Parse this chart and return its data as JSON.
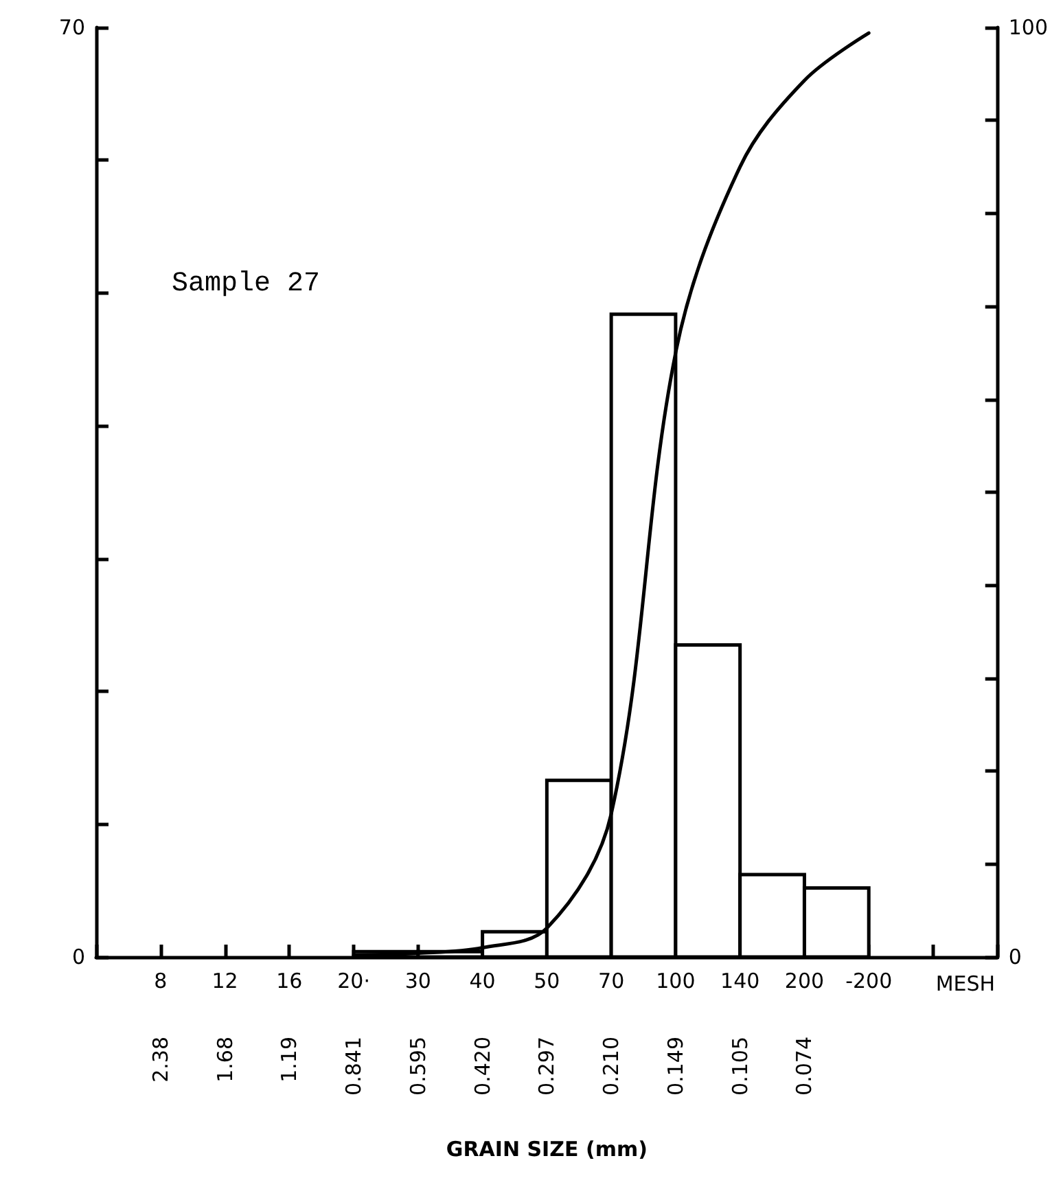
{
  "chart_data": {
    "type": "bar",
    "title": "Sample 27",
    "xlabel": "MESH",
    "categories": [
      null,
      "8",
      "12",
      "16",
      "20·",
      "30",
      "40",
      "50",
      "70",
      "100",
      "140",
      "200",
      "-200",
      null,
      null
    ],
    "values": [
      null,
      null,
      null,
      null,
      0.4,
      0.4,
      1.9,
      13.3,
      48.4,
      23.5,
      6.2,
      5.2,
      null,
      null,
      null
    ],
    "color": "#000000",
    "series": [
      {
        "type": "line",
        "axis": "y2",
        "color": "#000000",
        "values": [
          null,
          null,
          null,
          null,
          0.2,
          0.4,
          1,
          3.1,
          15.4,
          65,
          85,
          94.3,
          99.4,
          null,
          null
        ]
      }
    ],
    "annotations": [
      "2.38",
      "1.68",
      "1.19",
      "0.841",
      "0.595",
      "0.420",
      "0.297",
      "0.210",
      "0.149",
      "0.105",
      "0.074",
      "GRAIN SIZE (mm)"
    ],
    "ylim": [
      0,
      70
    ],
    "yticks": [
      0,
      {
        "value": 10,
        "label": null
      },
      {
        "value": 20,
        "label": null
      },
      {
        "value": 30,
        "label": null
      },
      {
        "value": 40,
        "label": null
      },
      {
        "value": 50,
        "label": null
      },
      {
        "value": 60,
        "label": null
      },
      70
    ],
    "y2lim": [
      0,
      100
    ],
    "y2ticks": [
      0,
      {
        "value": 10,
        "label": null
      },
      {
        "value": 20,
        "label": null
      },
      {
        "value": 30,
        "label": null
      },
      {
        "value": 40,
        "label": null
      },
      {
        "value": 50,
        "label": null
      },
      {
        "value": 60,
        "label": null
      },
      {
        "value": 70,
        "label": null
      },
      {
        "value": 80,
        "label": null
      },
      {
        "value": 90,
        "label": null
      },
      100
    ],
    "grid": false,
    "marker": "none",
    "line_style": "solid"
  }
}
